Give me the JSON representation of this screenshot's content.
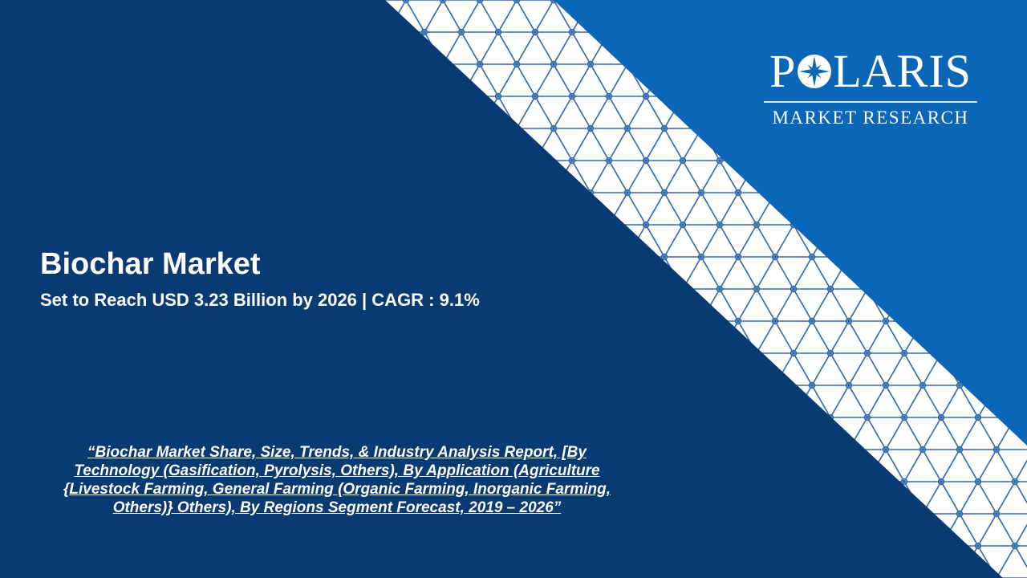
{
  "colors": {
    "navy": "#0a3a72",
    "blue": "#0b66b8",
    "band": "#ffffff",
    "lattice": "#2f6aa8"
  },
  "logo": {
    "word_left": "P",
    "word_right": "LARIS",
    "subtitle": "MARKET RESEARCH",
    "icon": "compass-star-icon"
  },
  "headline": {
    "title": "Biochar Market",
    "subtitle": "Set to Reach USD 3.23 Billion by 2026 | CAGR : 9.1%"
  },
  "report_title": "“Biochar Market Share, Size, Trends, & Industry Analysis Report, [By Technology (Gasification, Pyrolysis, Others), By Application (Agriculture {Livestock Farming, General Farming (Organic Farming, Inorganic Farming, Others)} Others), By Regions Segment Forecast, 2019 – 2026”"
}
